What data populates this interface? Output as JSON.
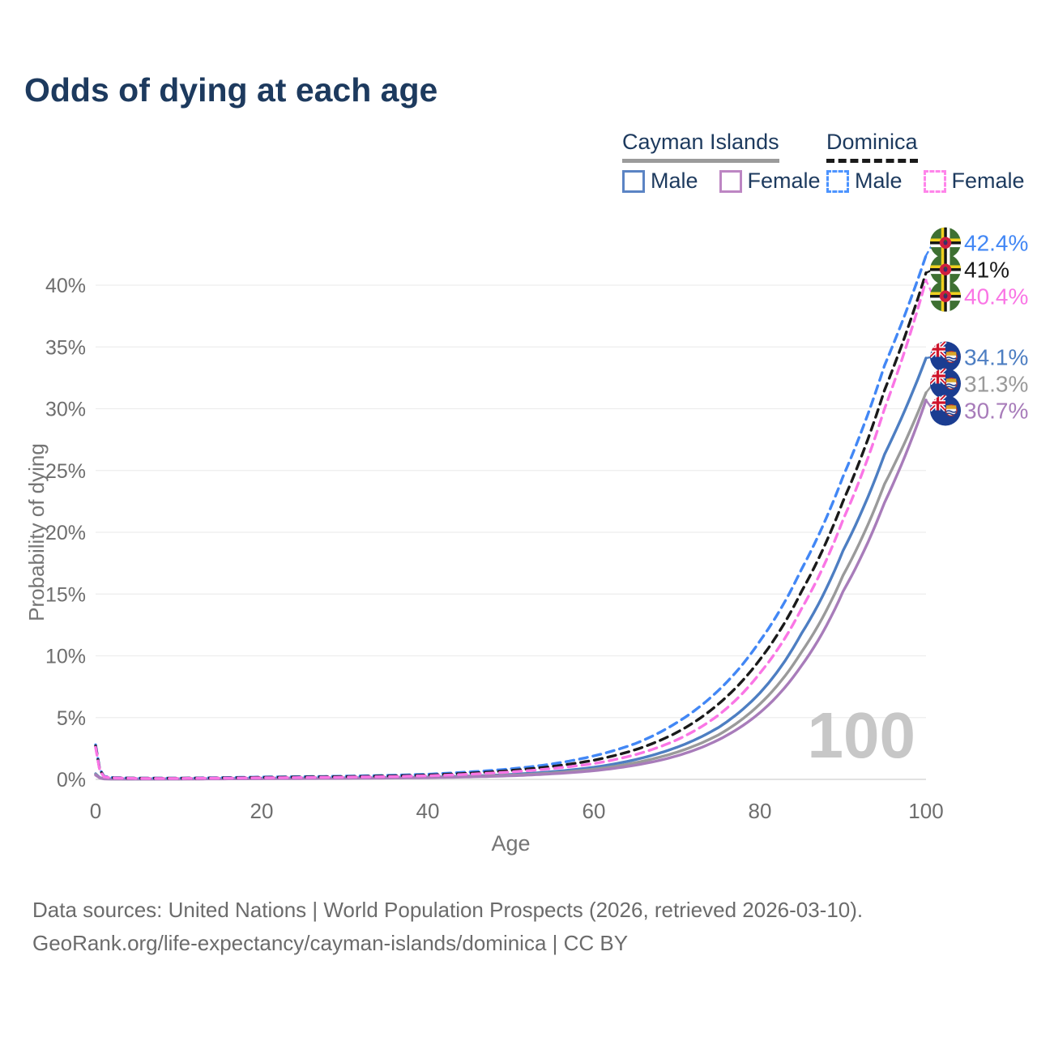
{
  "title": "Odds of dying at each age",
  "watermark": "100",
  "legend": {
    "groups": [
      {
        "name": "Cayman Islands",
        "line_style": "solid",
        "underline_color": "#9b9b9b",
        "items": [
          {
            "label": "Male",
            "color": "#5b84c4"
          },
          {
            "label": "Female",
            "color": "#bd86c3"
          }
        ]
      },
      {
        "name": "Dominica",
        "line_style": "dashed",
        "underline_color": "#1a1a1a",
        "items": [
          {
            "label": "Male",
            "color": "#4d94ff"
          },
          {
            "label": "Female",
            "color": "#ff85ea"
          }
        ]
      }
    ]
  },
  "footer": {
    "line1": "Data sources: United Nations | World Population Prospects (2026, retrieved 2026-03-10).",
    "line2": "GeoRank.org/life-expectancy/cayman-islands/dominica | CC BY"
  },
  "chart_data": {
    "type": "line",
    "title": "Odds of dying at each age",
    "xlabel": "Age",
    "ylabel": "Probability of dying",
    "xlim": [
      0,
      100
    ],
    "ylim": [
      0,
      44
    ],
    "x_ticks": [
      0,
      20,
      40,
      60,
      80,
      100
    ],
    "y_ticks": [
      0,
      5,
      10,
      15,
      20,
      25,
      30,
      35,
      40
    ],
    "y_tick_suffix": "%",
    "grid": "horizontal",
    "legend_position": "top-right",
    "ages": [
      0,
      1,
      2,
      5,
      10,
      15,
      20,
      25,
      30,
      35,
      40,
      45,
      50,
      55,
      60,
      65,
      70,
      75,
      80,
      85,
      90,
      95,
      100
    ],
    "series": [
      {
        "name": "Cayman Islands Male",
        "key": "cayman-male",
        "flag": "cayman-islands",
        "color": "#4d7ec2",
        "dashed": false,
        "end_value": 34.1,
        "end_label": "34.1%",
        "values": [
          0.45,
          0.05,
          0.04,
          0.03,
          0.04,
          0.06,
          0.09,
          0.1,
          0.12,
          0.15,
          0.19,
          0.27,
          0.4,
          0.62,
          0.98,
          1.6,
          2.6,
          4.2,
          7.0,
          11.8,
          18.5,
          26.3,
          34.1
        ]
      },
      {
        "name": "Cayman Islands Total",
        "key": "cayman-total",
        "flag": "cayman-islands",
        "color": "#9a9a9a",
        "dashed": false,
        "end_value": 31.3,
        "end_label": "31.3%",
        "values": [
          0.4,
          0.045,
          0.035,
          0.028,
          0.035,
          0.05,
          0.07,
          0.085,
          0.1,
          0.13,
          0.16,
          0.23,
          0.34,
          0.52,
          0.82,
          1.35,
          2.2,
          3.6,
          6.1,
          10.3,
          16.5,
          23.9,
          31.3
        ]
      },
      {
        "name": "Cayman Islands Female",
        "key": "cayman-female",
        "flag": "cayman-islands",
        "color": "#a87cba",
        "dashed": false,
        "end_value": 30.7,
        "end_label": "30.7%",
        "values": [
          0.35,
          0.04,
          0.03,
          0.025,
          0.03,
          0.04,
          0.055,
          0.07,
          0.085,
          0.11,
          0.14,
          0.2,
          0.29,
          0.45,
          0.7,
          1.15,
          1.9,
          3.2,
          5.4,
          9.2,
          15.2,
          22.4,
          30.7
        ]
      },
      {
        "name": "Dominica Male",
        "key": "dominica-male",
        "flag": "dominica",
        "color": "#4287f5",
        "dashed": true,
        "end_value": 42.4,
        "end_label": "42.4%",
        "values": [
          2.8,
          0.25,
          0.15,
          0.1,
          0.1,
          0.14,
          0.19,
          0.22,
          0.26,
          0.32,
          0.42,
          0.6,
          0.85,
          1.25,
          1.9,
          2.9,
          4.6,
          7.2,
          11.2,
          17.0,
          24.5,
          33.5,
          42.4
        ]
      },
      {
        "name": "Dominica Total",
        "key": "dominica-total",
        "flag": "dominica",
        "color": "#1a1a1a",
        "dashed": true,
        "end_value": 41.0,
        "end_label": "41%",
        "values": [
          2.7,
          0.23,
          0.13,
          0.09,
          0.09,
          0.12,
          0.16,
          0.19,
          0.22,
          0.27,
          0.35,
          0.5,
          0.72,
          1.05,
          1.55,
          2.4,
          3.8,
          6.1,
          9.7,
          15.2,
          22.5,
          31.5,
          41.0
        ]
      },
      {
        "name": "Dominica Female",
        "key": "dominica-female",
        "flag": "dominica",
        "color": "#fa75e5",
        "dashed": true,
        "end_value": 40.4,
        "end_label": "40.4%",
        "values": [
          2.6,
          0.21,
          0.12,
          0.08,
          0.08,
          0.1,
          0.13,
          0.15,
          0.18,
          0.22,
          0.29,
          0.42,
          0.6,
          0.88,
          1.28,
          2.0,
          3.2,
          5.2,
          8.6,
          13.8,
          21.0,
          30.0,
          40.4
        ]
      }
    ]
  }
}
